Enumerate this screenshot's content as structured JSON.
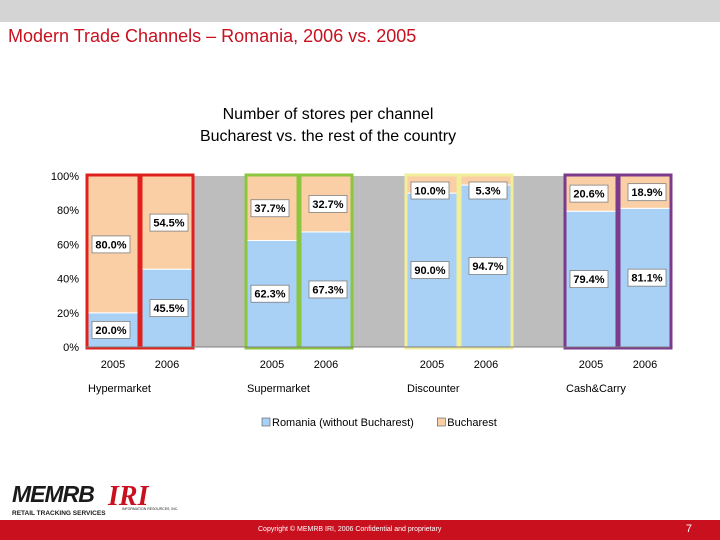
{
  "slide": {
    "title": "Modern Trade Channels – Romania, 2006 vs. 2005",
    "copyright": "Copyright © MEMRB IRI, 2006 Confidential and proprietary",
    "page_number": "7"
  },
  "logos": {
    "memrb_text": "MEMRB",
    "memrb_tagline": "RETAIL TRACKING SERVICES",
    "iri_text": "IRI",
    "iri_tagline": "INFORMATION RESOURCES, INC."
  },
  "chart_data": {
    "type": "bar",
    "stacked": true,
    "percent_stacked": true,
    "title_lines": [
      "Number of stores per channel",
      "Bucharest vs. the rest of the country"
    ],
    "y_ticks": [
      "0%",
      "20%",
      "40%",
      "60%",
      "80%",
      "100%"
    ],
    "ylim": [
      0,
      100
    ],
    "groups": [
      {
        "name": "Hypermarket",
        "frame_color": "#e0201c",
        "bars": [
          {
            "year": "2005",
            "romania": 20.0,
            "bucharest": 80.0,
            "romania_label": "20.0%",
            "bucharest_label": "80.0%"
          },
          {
            "year": "2006",
            "romania": 45.5,
            "bucharest": 54.5,
            "romania_label": "45.5%",
            "bucharest_label": "54.5%"
          }
        ]
      },
      {
        "name": "Supermarket",
        "frame_color": "#8cc63f",
        "bars": [
          {
            "year": "2005",
            "romania": 62.3,
            "bucharest": 37.7,
            "romania_label": "62.3%",
            "bucharest_label": "37.7%"
          },
          {
            "year": "2006",
            "romania": 67.3,
            "bucharest": 32.7,
            "romania_label": "67.3%",
            "bucharest_label": "32.7%"
          }
        ]
      },
      {
        "name": "Discounter",
        "frame_color": "#f2ee9a",
        "bars": [
          {
            "year": "2005",
            "romania": 90.0,
            "bucharest": 10.0,
            "romania_label": "90.0%",
            "bucharest_label": "10.0%"
          },
          {
            "year": "2006",
            "romania": 94.7,
            "bucharest": 5.3,
            "romania_label": "94.7%",
            "bucharest_label": "5.3%"
          }
        ]
      },
      {
        "name": "Cash&Carry",
        "frame_color": "#7b3a8c",
        "bars": [
          {
            "year": "2005",
            "romania": 79.4,
            "bucharest": 20.6,
            "romania_label": "79.4%",
            "bucharest_label": "20.6%"
          },
          {
            "year": "2006",
            "romania": 81.1,
            "bucharest": 18.9,
            "romania_label": "81.1%",
            "bucharest_label": "18.9%"
          }
        ]
      }
    ],
    "series": [
      {
        "name": "Romania (without Bucharest)",
        "key": "romania",
        "color": "#a9d0f5"
      },
      {
        "name": "Bucharest",
        "key": "bucharest",
        "color": "#fbcfa6"
      }
    ],
    "gap_color": "#bdbdbd",
    "legend_position": "bottom"
  }
}
